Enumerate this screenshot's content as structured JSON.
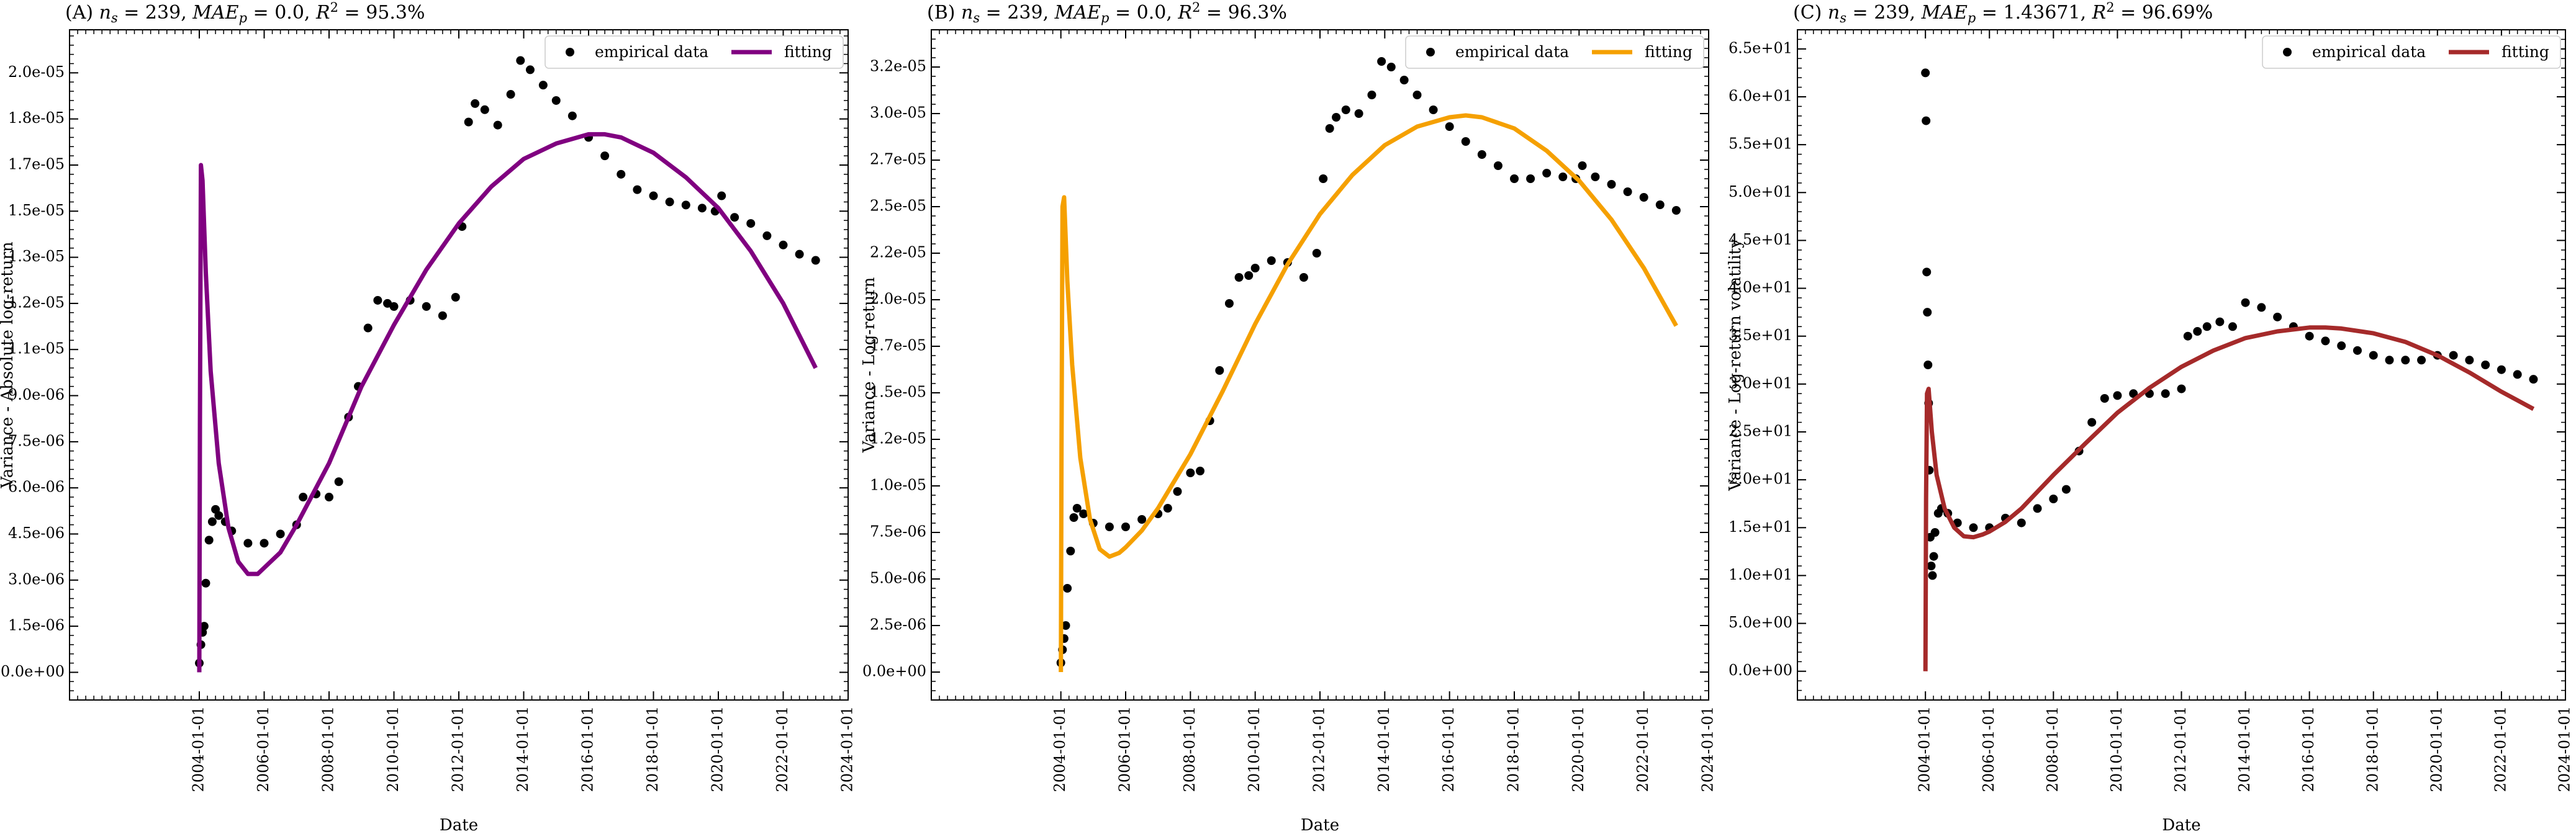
{
  "chart_data": [
    {
      "id": "A",
      "type": "scatter",
      "title": "(A) n_s = 239, MAE_p = 0.0, R^2 = 95.3%",
      "title_parts": {
        "panel": "(A)",
        "n_s": "239",
        "mae": "0.0",
        "r2": "95.3%"
      },
      "xlabel": "Date",
      "ylabel": "Variance - Absolute log-return",
      "xlim": [
        2000.0,
        2024.0
      ],
      "ylim": [
        -9e-07,
        2.09e-05
      ],
      "x_ticks": [
        "2004-01-01",
        "2006-01-01",
        "2008-01-01",
        "2010-01-01",
        "2012-01-01",
        "2014-01-01",
        "2016-01-01",
        "2018-01-01",
        "2020-01-01",
        "2022-01-01",
        "2024-01-01"
      ],
      "x_tick_values": [
        2004,
        2006,
        2008,
        2010,
        2012,
        2014,
        2016,
        2018,
        2020,
        2022,
        2024
      ],
      "y_ticks": [
        "0.0e+00",
        "1.5e-06",
        "3.0e-06",
        "4.5e-06",
        "6.0e-06",
        "7.5e-06",
        "9.0e-06",
        "1.1e-05",
        "1.2e-05",
        "1.3e-05",
        "1.5e-05",
        "1.7e-05",
        "1.8e-05",
        "2.0e-05"
      ],
      "y_tick_values": [
        0,
        1.5e-06,
        3e-06,
        4.5e-06,
        6e-06,
        7.5e-06,
        9e-06,
        1.05e-05,
        1.2e-05,
        1.35e-05,
        1.5e-05,
        1.65e-05,
        1.8e-05,
        1.95e-05
      ],
      "legend": {
        "position": "top-right",
        "empirical_label": "empirical data",
        "fitting_label": "fitting"
      },
      "colors": {
        "fit": "#800080",
        "points": "#000000"
      },
      "empirical": {
        "x": [
          2004.0,
          2004.05,
          2004.1,
          2004.15,
          2004.2,
          2004.3,
          2004.4,
          2004.5,
          2004.6,
          2004.8,
          2005.0,
          2005.5,
          2006.0,
          2006.5,
          2007.0,
          2007.2,
          2007.6,
          2008.0,
          2008.3,
          2008.6,
          2008.9,
          2009.2,
          2009.5,
          2009.8,
          2010.0,
          2010.5,
          2011.0,
          2011.5,
          2011.9,
          2012.1,
          2012.3,
          2012.5,
          2012.8,
          2013.2,
          2013.6,
          2013.9,
          2014.2,
          2014.6,
          2015.0,
          2015.5,
          2016.0,
          2016.5,
          2017.0,
          2017.5,
          2018.0,
          2018.5,
          2019.0,
          2019.5,
          2019.9,
          2020.1,
          2020.5,
          2021.0,
          2021.5,
          2022.0,
          2022.5,
          2023.0
        ],
        "y": [
          3e-07,
          9e-07,
          1.3e-06,
          1.5e-06,
          2.9e-06,
          4.3e-06,
          4.9e-06,
          5.3e-06,
          5.1e-06,
          4.9e-06,
          4.6e-06,
          4.2e-06,
          4.2e-06,
          4.5e-06,
          4.8e-06,
          5.7e-06,
          5.8e-06,
          5.7e-06,
          6.2e-06,
          8.3e-06,
          9.3e-06,
          1.12e-05,
          1.21e-05,
          1.2e-05,
          1.19e-05,
          1.21e-05,
          1.19e-05,
          1.16e-05,
          1.22e-05,
          1.45e-05,
          1.79e-05,
          1.85e-05,
          1.83e-05,
          1.78e-05,
          1.88e-05,
          1.99e-05,
          1.96e-05,
          1.91e-05,
          1.86e-05,
          1.81e-05,
          1.74e-05,
          1.68e-05,
          1.62e-05,
          1.57e-05,
          1.55e-05,
          1.53e-05,
          1.52e-05,
          1.51e-05,
          1.5e-05,
          1.55e-05,
          1.48e-05,
          1.46e-05,
          1.42e-05,
          1.39e-05,
          1.36e-05,
          1.34e-05
        ]
      },
      "fit": {
        "x": [
          2004.0,
          2004.02,
          2004.05,
          2004.1,
          2004.2,
          2004.35,
          2004.6,
          2004.9,
          2005.2,
          2005.5,
          2005.8,
          2006.0,
          2006.5,
          2007.0,
          2008.0,
          2009.0,
          2010.0,
          2011.0,
          2012.0,
          2013.0,
          2014.0,
          2015.0,
          2016.0,
          2016.5,
          2017.0,
          2018.0,
          2019.0,
          2020.0,
          2021.0,
          2022.0,
          2023.0
        ],
        "y": [
          0.0,
          8e-06,
          1.65e-05,
          1.6e-05,
          1.3e-05,
          9.8e-06,
          6.8e-06,
          4.7e-06,
          3.6e-06,
          3.2e-06,
          3.2e-06,
          3.4e-06,
          3.9e-06,
          4.8e-06,
          6.8e-06,
          9.3e-06,
          1.13e-05,
          1.31e-05,
          1.46e-05,
          1.58e-05,
          1.67e-05,
          1.72e-05,
          1.75e-05,
          1.75e-05,
          1.74e-05,
          1.69e-05,
          1.61e-05,
          1.51e-05,
          1.37e-05,
          1.2e-05,
          9.9e-06
        ]
      }
    },
    {
      "id": "B",
      "type": "scatter",
      "title": "(B) n_s = 239, MAE_p = 0.0, R^2 = 96.3%",
      "title_parts": {
        "panel": "(B)",
        "n_s": "239",
        "mae": "0.0",
        "r2": "96.3%"
      },
      "xlabel": "Date",
      "ylabel": "Variance - Log-return",
      "xlim": [
        2000.0,
        2024.0
      ],
      "ylim": [
        -1.5e-06,
        3.45e-05
      ],
      "x_ticks": [
        "2004-01-01",
        "2006-01-01",
        "2008-01-01",
        "2010-01-01",
        "2012-01-01",
        "2014-01-01",
        "2016-01-01",
        "2018-01-01",
        "2020-01-01",
        "2022-01-01",
        "2024-01-01"
      ],
      "x_tick_values": [
        2004,
        2006,
        2008,
        2010,
        2012,
        2014,
        2016,
        2018,
        2020,
        2022,
        2024
      ],
      "y_ticks": [
        "0.0e+00",
        "2.5e-06",
        "5.0e-06",
        "7.5e-06",
        "1.0e-05",
        "1.2e-05",
        "1.5e-05",
        "1.7e-05",
        "2.0e-05",
        "2.2e-05",
        "2.5e-05",
        "2.7e-05",
        "3.0e-05",
        "3.2e-05"
      ],
      "y_tick_values": [
        0,
        2.5e-06,
        5e-06,
        7.5e-06,
        1e-05,
        1.25e-05,
        1.5e-05,
        1.75e-05,
        2e-05,
        2.25e-05,
        2.5e-05,
        2.75e-05,
        3e-05,
        3.25e-05
      ],
      "legend": {
        "position": "top-right",
        "empirical_label": "empirical data",
        "fitting_label": "fitting"
      },
      "colors": {
        "fit": "#f5a000",
        "points": "#000000"
      },
      "empirical": {
        "x": [
          2004.0,
          2004.05,
          2004.1,
          2004.15,
          2004.2,
          2004.3,
          2004.4,
          2004.5,
          2004.7,
          2005.0,
          2005.5,
          2006.0,
          2006.5,
          2007.0,
          2007.3,
          2007.6,
          2008.0,
          2008.3,
          2008.6,
          2008.9,
          2009.2,
          2009.5,
          2009.8,
          2010.0,
          2010.5,
          2011.0,
          2011.5,
          2011.9,
          2012.1,
          2012.3,
          2012.5,
          2012.8,
          2013.2,
          2013.6,
          2013.9,
          2014.2,
          2014.6,
          2015.0,
          2015.5,
          2016.0,
          2016.5,
          2017.0,
          2017.5,
          2018.0,
          2018.5,
          2019.0,
          2019.5,
          2019.9,
          2020.1,
          2020.5,
          2021.0,
          2021.5,
          2022.0,
          2022.5,
          2023.0
        ],
        "y": [
          5e-07,
          1.2e-06,
          1.8e-06,
          2.5e-06,
          4.5e-06,
          6.5e-06,
          8.3e-06,
          8.8e-06,
          8.5e-06,
          8e-06,
          7.8e-06,
          7.8e-06,
          8.2e-06,
          8.5e-06,
          8.8e-06,
          9.7e-06,
          1.07e-05,
          1.08e-05,
          1.35e-05,
          1.62e-05,
          1.98e-05,
          2.12e-05,
          2.13e-05,
          2.17e-05,
          2.21e-05,
          2.2e-05,
          2.12e-05,
          2.25e-05,
          2.65e-05,
          2.92e-05,
          2.98e-05,
          3.02e-05,
          3e-05,
          3.1e-05,
          3.28e-05,
          3.25e-05,
          3.18e-05,
          3.1e-05,
          3.02e-05,
          2.93e-05,
          2.85e-05,
          2.78e-05,
          2.72e-05,
          2.65e-05,
          2.65e-05,
          2.68e-05,
          2.66e-05,
          2.65e-05,
          2.72e-05,
          2.66e-05,
          2.62e-05,
          2.58e-05,
          2.55e-05,
          2.51e-05,
          2.48e-05
        ]
      },
      "fit": {
        "x": [
          2004.0,
          2004.02,
          2004.05,
          2004.1,
          2004.2,
          2004.35,
          2004.6,
          2004.9,
          2005.2,
          2005.5,
          2005.8,
          2006.0,
          2006.5,
          2007.0,
          2008.0,
          2009.0,
          2010.0,
          2011.0,
          2012.0,
          2013.0,
          2014.0,
          2015.0,
          2016.0,
          2016.5,
          2017.0,
          2018.0,
          2019.0,
          2020.0,
          2021.0,
          2022.0,
          2023.0
        ],
        "y": [
          0.0,
          1.2e-05,
          2.5e-05,
          2.55e-05,
          2.1e-05,
          1.65e-05,
          1.15e-05,
          8.2e-06,
          6.6e-06,
          6.2e-06,
          6.4e-06,
          6.7e-06,
          7.6e-06,
          8.8e-06,
          1.17e-05,
          1.51e-05,
          1.87e-05,
          2.19e-05,
          2.46e-05,
          2.67e-05,
          2.83e-05,
          2.93e-05,
          2.98e-05,
          2.99e-05,
          2.98e-05,
          2.92e-05,
          2.8e-05,
          2.64e-05,
          2.43e-05,
          2.17e-05,
          1.86e-05
        ]
      }
    },
    {
      "id": "C",
      "type": "scatter",
      "title": "(C) n_s = 239, MAE_p = 1.43671, R^2 = 96.69%",
      "title_parts": {
        "panel": "(C)",
        "n_s": "239",
        "mae": "1.43671",
        "r2": "96.69%"
      },
      "xlabel": "Date",
      "ylabel": "Variance - Log-return volatility",
      "xlim": [
        2000.0,
        2024.0
      ],
      "ylim": [
        -3.0,
        67.0
      ],
      "x_ticks": [
        "2004-01-01",
        "2006-01-01",
        "2008-01-01",
        "2010-01-01",
        "2012-01-01",
        "2014-01-01",
        "2016-01-01",
        "2018-01-01",
        "2020-01-01",
        "2022-01-01",
        "2024-01-01"
      ],
      "x_tick_values": [
        2004,
        2006,
        2008,
        2010,
        2012,
        2014,
        2016,
        2018,
        2020,
        2022,
        2024
      ],
      "y_ticks": [
        "0.0e+00",
        "5.0e+00",
        "1.0e+01",
        "1.5e+01",
        "2.0e+01",
        "2.5e+01",
        "3.0e+01",
        "3.5e+01",
        "4.0e+01",
        "4.5e+01",
        "5.0e+01",
        "5.5e+01",
        "6.0e+01",
        "6.5e+01"
      ],
      "y_tick_values": [
        0,
        5,
        10,
        15,
        20,
        25,
        30,
        35,
        40,
        45,
        50,
        55,
        60,
        65
      ],
      "legend": {
        "position": "top-right",
        "empirical_label": "empirical data",
        "fitting_label": "fitting"
      },
      "colors": {
        "fit": "#a52a2a",
        "points": "#000000"
      },
      "empirical": {
        "x": [
          2004.0,
          2004.02,
          2004.04,
          2004.06,
          2004.08,
          2004.1,
          2004.12,
          2004.15,
          2004.18,
          2004.22,
          2004.26,
          2004.3,
          2004.4,
          2004.5,
          2004.7,
          2005.0,
          2005.5,
          2006.0,
          2006.5,
          2007.0,
          2007.5,
          2008.0,
          2008.4,
          2008.8,
          2009.2,
          2009.6,
          2010.0,
          2010.5,
          2011.0,
          2011.5,
          2012.0,
          2012.2,
          2012.5,
          2012.8,
          2013.2,
          2013.6,
          2014.0,
          2014.5,
          2015.0,
          2015.5,
          2016.0,
          2016.5,
          2017.0,
          2017.5,
          2018.0,
          2018.5,
          2019.0,
          2019.5,
          2020.0,
          2020.5,
          2021.0,
          2021.5,
          2022.0,
          2022.5,
          2023.0
        ],
        "y": [
          62.5,
          57.5,
          41.7,
          37.5,
          32.0,
          28.0,
          21.0,
          14.0,
          11.0,
          10.0,
          12.0,
          14.5,
          16.5,
          17.0,
          16.5,
          15.5,
          15.0,
          15.0,
          16.0,
          15.5,
          17.0,
          18.0,
          19.0,
          23.0,
          26.0,
          28.5,
          28.8,
          29.0,
          29.0,
          29.0,
          29.5,
          35.0,
          35.5,
          36.0,
          36.5,
          36.0,
          38.5,
          38.0,
          37.0,
          36.0,
          35.0,
          34.5,
          34.0,
          33.5,
          33.0,
          32.5,
          32.5,
          32.5,
          33.0,
          33.0,
          32.5,
          32.0,
          31.5,
          31.0,
          30.5
        ]
      },
      "fit": {
        "x": [
          2004.0,
          2004.02,
          2004.05,
          2004.1,
          2004.2,
          2004.35,
          2004.6,
          2004.9,
          2005.2,
          2005.5,
          2005.8,
          2006.0,
          2006.5,
          2007.0,
          2008.0,
          2009.0,
          2010.0,
          2011.0,
          2012.0,
          2013.0,
          2014.0,
          2015.0,
          2016.0,
          2016.5,
          2017.0,
          2018.0,
          2019.0,
          2020.0,
          2021.0,
          2022.0,
          2023.0
        ],
        "y": [
          0.0,
          18.0,
          29.0,
          29.5,
          25.0,
          20.5,
          17.0,
          15.0,
          14.1,
          14.0,
          14.3,
          14.6,
          15.6,
          17.0,
          20.5,
          23.8,
          27.0,
          29.6,
          31.8,
          33.5,
          34.8,
          35.5,
          35.9,
          35.9,
          35.8,
          35.3,
          34.4,
          33.0,
          31.2,
          29.2,
          27.4
        ]
      }
    }
  ]
}
